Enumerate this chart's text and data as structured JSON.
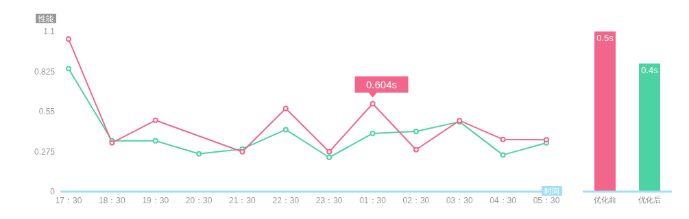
{
  "chart_data": [
    {
      "type": "line",
      "ylabel": "性能",
      "xlabel": "时间",
      "categories": [
        "17：30",
        "18：30",
        "19：30",
        "20：30",
        "21：30",
        "22：30",
        "23：30",
        "01：30",
        "02：30",
        "03：30",
        "04：30",
        "05：30"
      ],
      "series": [
        {
          "color": "#f2668b",
          "values": [
            1.048,
            0.335,
            0.49,
            null,
            0.274,
            0.571,
            0.274,
            0.604,
            0.288,
            0.488,
            0.359,
            0.356
          ]
        },
        {
          "color": "#4bd3a4",
          "values": [
            0.845,
            0.349,
            0.349,
            0.26,
            0.293,
            0.426,
            0.235,
            0.4,
            0.414,
            0.48,
            0.252,
            0.335
          ]
        }
      ],
      "ylim": [
        0,
        1.1
      ],
      "yticks": [
        0,
        0.275,
        0.55,
        0.825,
        1.1
      ],
      "marker": "circle",
      "annotations": [
        {
          "text": "0.604s",
          "x": "01：30",
          "y": 0.604
        }
      ]
    },
    {
      "type": "bar",
      "categories": [
        "优化前",
        "优化后"
      ],
      "values": [
        0.5,
        0.4
      ],
      "colors": [
        "#f2668b",
        "#4bd3a4"
      ],
      "value_labels": [
        "0.5s",
        "0.4s"
      ],
      "tick_labels": "x"
    }
  ]
}
